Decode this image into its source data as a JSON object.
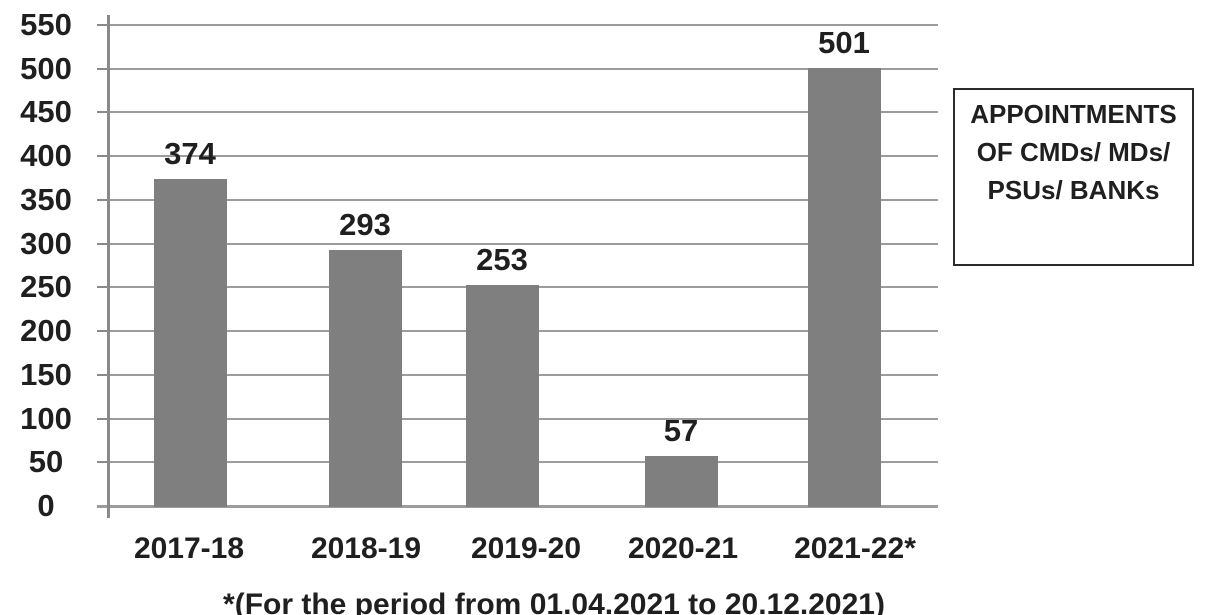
{
  "chart_data": {
    "type": "bar",
    "title": "",
    "xlabel": "",
    "ylabel": "",
    "categories": [
      "2017-18",
      "2018-19",
      "2019-20",
      "2020-21",
      "2021-22*"
    ],
    "values": [
      374,
      293,
      253,
      57,
      501
    ],
    "ylim": [
      0,
      550
    ],
    "ytick_step": 50,
    "yticks": [
      550,
      500,
      450,
      400,
      350,
      300,
      250,
      200,
      150,
      100,
      50,
      0
    ],
    "grid": true,
    "legend_position": "right",
    "footnote": "*(For the period from 01.04.2021 to 20.12.2021)"
  },
  "legend": {
    "lines": [
      "APPOINTMENTS",
      "OF CMDs/ MDs/",
      "PSUs/ BANKs"
    ]
  },
  "colors": {
    "bar": "#7f7f7f",
    "gridline": "#9c9c9c",
    "axis": "#8a8a8a",
    "text": "#1f1f1f",
    "legend_border": "#2b2b2b",
    "background": "#ffffff"
  }
}
